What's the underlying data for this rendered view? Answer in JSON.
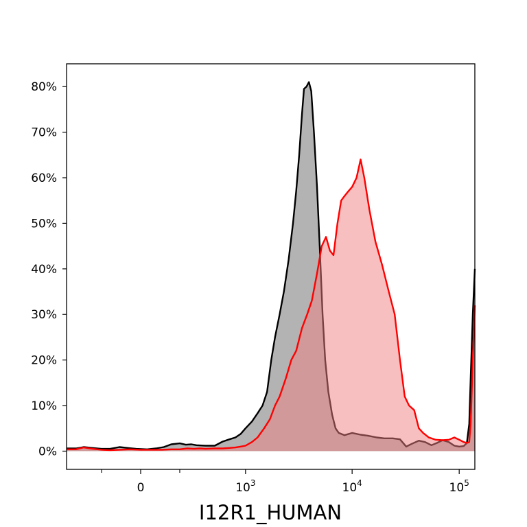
{
  "chart_data": {
    "type": "area",
    "title": "",
    "xlabel": "I12R1_HUMAN",
    "ylabel": "",
    "x_scale": "biexponential",
    "xlim": [
      -500,
      140000
    ],
    "ylim": [
      -0.04,
      0.85
    ],
    "grid": false,
    "legend": "none",
    "x_ticks": [
      {
        "value": 0,
        "label": "0"
      },
      {
        "value": 1000,
        "label": "10",
        "exp": "3"
      },
      {
        "value": 10000,
        "label": "10",
        "exp": "4"
      },
      {
        "value": 100000,
        "label": "10",
        "exp": "5"
      }
    ],
    "x_minor_ticks": [
      -200,
      200
    ],
    "y_ticks": [
      {
        "value": 0.0,
        "label": "0%"
      },
      {
        "value": 0.1,
        "label": "10%"
      },
      {
        "value": 0.2,
        "label": "20%"
      },
      {
        "value": 0.3,
        "label": "30%"
      },
      {
        "value": 0.4,
        "label": "40%"
      },
      {
        "value": 0.5,
        "label": "50%"
      },
      {
        "value": 0.6,
        "label": "60%"
      },
      {
        "value": 0.7,
        "label": "70%"
      },
      {
        "value": 0.8,
        "label": "80%"
      }
    ],
    "series": [
      {
        "line_color": "#000000",
        "fill_color": "#999999",
        "fill_opacity": 0.75,
        "points": [
          [
            -500,
            0.006
          ],
          [
            -400,
            0.006
          ],
          [
            -330,
            0.009
          ],
          [
            -260,
            0.007
          ],
          [
            -200,
            0.005
          ],
          [
            -150,
            0.005
          ],
          [
            -100,
            0.009
          ],
          [
            -60,
            0.007
          ],
          [
            -20,
            0.005
          ],
          [
            30,
            0.004
          ],
          [
            70,
            0.006
          ],
          [
            110,
            0.009
          ],
          [
            150,
            0.015
          ],
          [
            200,
            0.017
          ],
          [
            240,
            0.014
          ],
          [
            280,
            0.015
          ],
          [
            320,
            0.013
          ],
          [
            400,
            0.012
          ],
          [
            500,
            0.012
          ],
          [
            600,
            0.021
          ],
          [
            700,
            0.026
          ],
          [
            800,
            0.03
          ],
          [
            900,
            0.038
          ],
          [
            1000,
            0.05
          ],
          [
            1150,
            0.065
          ],
          [
            1300,
            0.083
          ],
          [
            1450,
            0.1
          ],
          [
            1600,
            0.13
          ],
          [
            1750,
            0.2
          ],
          [
            1900,
            0.25
          ],
          [
            2100,
            0.3
          ],
          [
            2300,
            0.35
          ],
          [
            2550,
            0.42
          ],
          [
            2800,
            0.5
          ],
          [
            3000,
            0.57
          ],
          [
            3200,
            0.65
          ],
          [
            3400,
            0.74
          ],
          [
            3550,
            0.795
          ],
          [
            3750,
            0.8
          ],
          [
            3950,
            0.81
          ],
          [
            4150,
            0.79
          ],
          [
            4400,
            0.7
          ],
          [
            4700,
            0.58
          ],
          [
            5000,
            0.44
          ],
          [
            5300,
            0.3
          ],
          [
            5600,
            0.2
          ],
          [
            6000,
            0.13
          ],
          [
            6500,
            0.08
          ],
          [
            7000,
            0.05
          ],
          [
            7500,
            0.04
          ],
          [
            8500,
            0.035
          ],
          [
            10000,
            0.04
          ],
          [
            12000,
            0.036
          ],
          [
            14000,
            0.034
          ],
          [
            17000,
            0.03
          ],
          [
            20000,
            0.028
          ],
          [
            24000,
            0.028
          ],
          [
            28000,
            0.026
          ],
          [
            32000,
            0.01
          ],
          [
            36000,
            0.016
          ],
          [
            42000,
            0.023
          ],
          [
            48000,
            0.02
          ],
          [
            55000,
            0.013
          ],
          [
            62000,
            0.018
          ],
          [
            70000,
            0.024
          ],
          [
            80000,
            0.02
          ],
          [
            90000,
            0.012
          ],
          [
            100000,
            0.01
          ],
          [
            110000,
            0.011
          ],
          [
            118000,
            0.018
          ],
          [
            124000,
            0.06
          ],
          [
            128000,
            0.16
          ],
          [
            134000,
            0.3
          ],
          [
            140000,
            0.4
          ]
        ]
      },
      {
        "line_color": "#ff0000",
        "fill_color": "#f08080",
        "fill_opacity": 0.5,
        "points": [
          [
            -500,
            0.004
          ],
          [
            -400,
            0.004
          ],
          [
            -330,
            0.008
          ],
          [
            -260,
            0.005
          ],
          [
            -200,
            0.003
          ],
          [
            -150,
            0.002
          ],
          [
            -100,
            0.003
          ],
          [
            -50,
            0.004
          ],
          [
            0,
            0.003
          ],
          [
            50,
            0.003
          ],
          [
            100,
            0.003
          ],
          [
            150,
            0.004
          ],
          [
            200,
            0.004
          ],
          [
            250,
            0.006
          ],
          [
            300,
            0.005
          ],
          [
            350,
            0.006
          ],
          [
            400,
            0.005
          ],
          [
            500,
            0.006
          ],
          [
            600,
            0.006
          ],
          [
            700,
            0.007
          ],
          [
            800,
            0.008
          ],
          [
            900,
            0.01
          ],
          [
            1000,
            0.012
          ],
          [
            1150,
            0.02
          ],
          [
            1300,
            0.03
          ],
          [
            1500,
            0.05
          ],
          [
            1700,
            0.07
          ],
          [
            1900,
            0.1
          ],
          [
            2100,
            0.12
          ],
          [
            2400,
            0.16
          ],
          [
            2700,
            0.2
          ],
          [
            3000,
            0.22
          ],
          [
            3400,
            0.27
          ],
          [
            3800,
            0.3
          ],
          [
            4200,
            0.33
          ],
          [
            4700,
            0.39
          ],
          [
            5200,
            0.45
          ],
          [
            5700,
            0.47
          ],
          [
            6200,
            0.44
          ],
          [
            6700,
            0.43
          ],
          [
            7300,
            0.5
          ],
          [
            7900,
            0.55
          ],
          [
            8500,
            0.56
          ],
          [
            9200,
            0.57
          ],
          [
            10000,
            0.58
          ],
          [
            11000,
            0.6
          ],
          [
            12000,
            0.64
          ],
          [
            13000,
            0.6
          ],
          [
            14500,
            0.53
          ],
          [
            16500,
            0.46
          ],
          [
            19000,
            0.41
          ],
          [
            22000,
            0.35
          ],
          [
            25000,
            0.3
          ],
          [
            28000,
            0.2
          ],
          [
            31000,
            0.12
          ],
          [
            34000,
            0.1
          ],
          [
            38000,
            0.09
          ],
          [
            42000,
            0.05
          ],
          [
            46000,
            0.04
          ],
          [
            52000,
            0.03
          ],
          [
            60000,
            0.025
          ],
          [
            70000,
            0.024
          ],
          [
            80000,
            0.025
          ],
          [
            90000,
            0.03
          ],
          [
            100000,
            0.025
          ],
          [
            110000,
            0.02
          ],
          [
            118000,
            0.018
          ],
          [
            124000,
            0.02
          ],
          [
            128000,
            0.06
          ],
          [
            134000,
            0.2
          ],
          [
            140000,
            0.32
          ]
        ]
      }
    ]
  }
}
